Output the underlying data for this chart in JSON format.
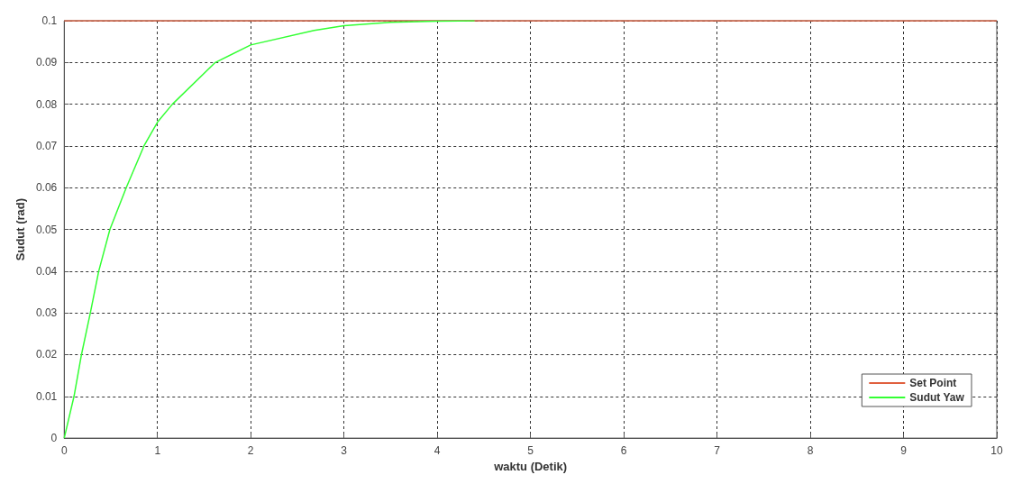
{
  "chart_data": {
    "type": "line",
    "xlabel": "waktu (Detik)",
    "ylabel": "Sudut (rad)",
    "xlim": [
      0,
      10
    ],
    "xticks": [
      0,
      1,
      2,
      3,
      4,
      5,
      6,
      7,
      8,
      9,
      10
    ],
    "ylim": [
      0,
      0.1
    ],
    "yticks": [
      0,
      0.01,
      0.02,
      0.03,
      0.04,
      0.05,
      0.06,
      0.07,
      0.08,
      0.09,
      0.1
    ],
    "grid": true,
    "legend": "bottom right",
    "marker": "none",
    "line_style": "solid",
    "series": [
      {
        "name": "Set Point",
        "color": "#e0603f",
        "x": [
          0,
          10
        ],
        "values": [
          0.1,
          0.1
        ]
      },
      {
        "name": "Sudut Yaw",
        "color": "#33ff33",
        "x": [
          0,
          0.105,
          0.185,
          0.28,
          0.37,
          0.49,
          0.665,
          0.855,
          1.0,
          1.16,
          1.62,
          2.0,
          2.68,
          3.0,
          3.5,
          4.0,
          4.4
        ],
        "values": [
          0,
          0.01,
          0.02,
          0.03,
          0.04,
          0.05,
          0.06,
          0.07,
          0.0757,
          0.08,
          0.09,
          0.0942,
          0.0977,
          0.0988,
          0.0996,
          0.0999,
          0.1
        ]
      }
    ]
  }
}
